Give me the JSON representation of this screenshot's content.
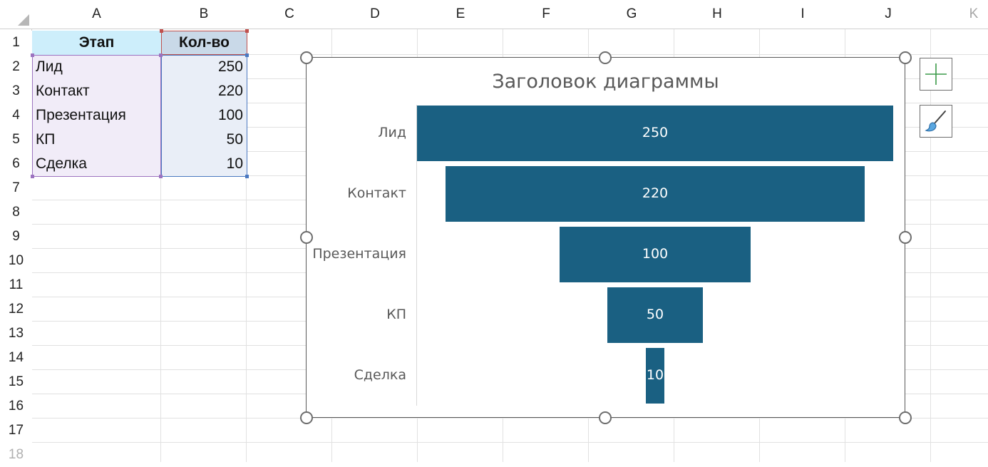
{
  "columns": [
    "A",
    "B",
    "C",
    "D",
    "E",
    "F",
    "G",
    "H",
    "I",
    "J",
    "K"
  ],
  "rows": [
    "1",
    "2",
    "3",
    "4",
    "5",
    "6",
    "7",
    "8",
    "9",
    "10",
    "11",
    "12",
    "13",
    "14",
    "15",
    "16",
    "17",
    "18"
  ],
  "table": {
    "header": {
      "a": "Этап",
      "b": "Кол-во"
    },
    "body": [
      {
        "a": "Лид",
        "b": "250"
      },
      {
        "a": "Контакт",
        "b": "220"
      },
      {
        "a": "Презентация",
        "b": "100"
      },
      {
        "a": "КП",
        "b": "50"
      },
      {
        "a": "Сделка",
        "b": "10"
      }
    ]
  },
  "chart_data": {
    "type": "bar",
    "variant": "funnel",
    "title": "Заголовок диаграммы",
    "categories": [
      "Лид",
      "Контакт",
      "Презентация",
      "КП",
      "Сделка"
    ],
    "values": [
      250,
      220,
      100,
      50,
      10
    ],
    "bar_color": "#1a6082",
    "data_labels": true,
    "gridlines": false
  },
  "side_buttons": {
    "add_elements_icon": "plus-icon",
    "styles_icon": "paintbrush-icon"
  }
}
